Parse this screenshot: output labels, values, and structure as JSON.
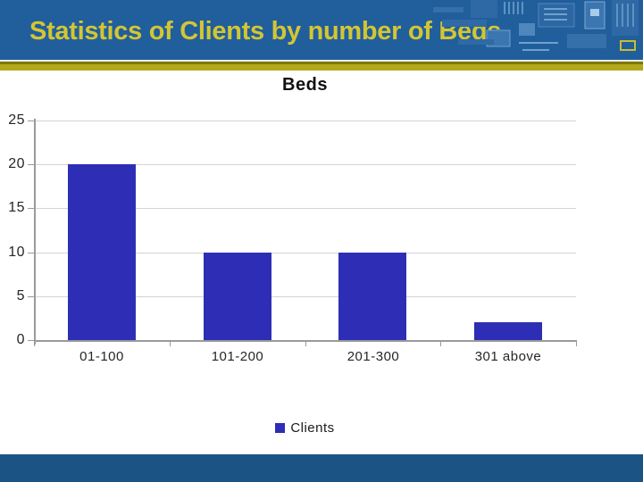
{
  "slide": {
    "title": "Statistics of Clients by number of Beds",
    "colors": {
      "header_bg": "#215E9C",
      "header_text": "#D3C633",
      "divider_gold": "#B3A71C",
      "divider_dark": "#7E7A08",
      "footer_bg": "#1B5385",
      "bar_fill": "#2D2EB5",
      "axis_line": "#9A9A9A",
      "grid_line": "#D4D4D4",
      "chart_text": "#262626"
    }
  },
  "chart_data": {
    "type": "bar",
    "title": "Beds",
    "categories": [
      "01-100",
      "101-200",
      "201-300",
      "301 above"
    ],
    "series": [
      {
        "name": "Clients",
        "values": [
          20,
          10,
          10,
          2
        ]
      }
    ],
    "xlabel": "",
    "ylabel": "",
    "ylim": [
      0,
      25
    ],
    "yticks": [
      0,
      5,
      10,
      15,
      20,
      25
    ],
    "grid": true,
    "legend_position": "bottom"
  }
}
